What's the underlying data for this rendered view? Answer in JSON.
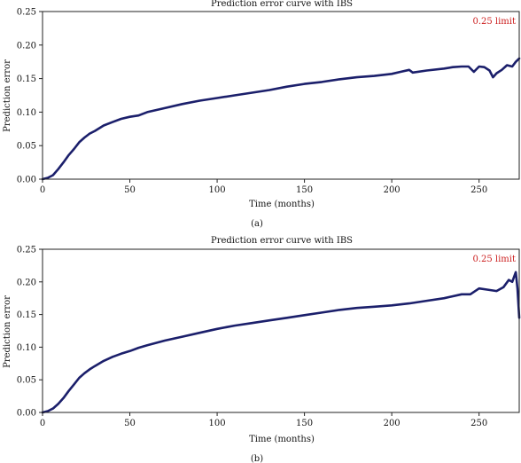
{
  "colors": {
    "series": "#1b1f6b",
    "limit": "#cc1f1f",
    "axis": "#222222"
  },
  "chart_data": [
    {
      "type": "line",
      "caption": "(a)",
      "title": "Prediction error curve with IBS",
      "xlabel": "Time (months)",
      "ylabel": "Prediction error",
      "xlim": [
        0,
        273
      ],
      "ylim": [
        0,
        0.25
      ],
      "xticks": [
        0,
        50,
        100,
        150,
        200,
        250
      ],
      "yticks": [
        "0.00",
        "0.05",
        "0.10",
        "0.15",
        "0.20",
        "0.25"
      ],
      "reference_line": {
        "y": 0.25,
        "label": "0.25 limit"
      },
      "series": [
        {
          "x": [
            0,
            3,
            6,
            9,
            12,
            15,
            18,
            21,
            24,
            27,
            30,
            35,
            40,
            45,
            50,
            55,
            60,
            70,
            80,
            90,
            100,
            110,
            120,
            130,
            140,
            150,
            160,
            170,
            180,
            190,
            200,
            205,
            210,
            212,
            220,
            230,
            235,
            240,
            244,
            247,
            250,
            253,
            256,
            258,
            260,
            263,
            266,
            269,
            271,
            273
          ],
          "y": [
            0.0,
            0.002,
            0.006,
            0.015,
            0.025,
            0.036,
            0.045,
            0.055,
            0.062,
            0.068,
            0.072,
            0.08,
            0.085,
            0.09,
            0.093,
            0.095,
            0.1,
            0.106,
            0.112,
            0.117,
            0.121,
            0.125,
            0.129,
            0.133,
            0.138,
            0.142,
            0.145,
            0.149,
            0.152,
            0.154,
            0.157,
            0.16,
            0.163,
            0.159,
            0.162,
            0.165,
            0.167,
            0.168,
            0.168,
            0.16,
            0.168,
            0.167,
            0.162,
            0.152,
            0.158,
            0.163,
            0.17,
            0.168,
            0.175,
            0.18
          ]
        }
      ]
    },
    {
      "type": "line",
      "caption": "(b)",
      "title": "Prediction error curve with IBS",
      "xlabel": "Time (months)",
      "ylabel": "Prediction error",
      "xlim": [
        0,
        273
      ],
      "ylim": [
        0,
        0.25
      ],
      "xticks": [
        0,
        50,
        100,
        150,
        200,
        250
      ],
      "yticks": [
        "0.00",
        "0.05",
        "0.10",
        "0.15",
        "0.20",
        "0.25"
      ],
      "reference_line": {
        "y": 0.25,
        "label": "0.25 limit"
      },
      "series": [
        {
          "x": [
            0,
            3,
            6,
            9,
            12,
            15,
            18,
            21,
            24,
            27,
            30,
            35,
            40,
            45,
            50,
            55,
            60,
            70,
            80,
            90,
            100,
            110,
            120,
            130,
            140,
            150,
            160,
            170,
            180,
            190,
            200,
            210,
            220,
            230,
            240,
            245,
            250,
            255,
            260,
            264,
            267,
            269,
            271,
            272,
            273
          ],
          "y": [
            0.0,
            0.002,
            0.006,
            0.013,
            0.022,
            0.033,
            0.043,
            0.053,
            0.06,
            0.066,
            0.071,
            0.079,
            0.085,
            0.09,
            0.094,
            0.099,
            0.103,
            0.11,
            0.116,
            0.122,
            0.128,
            0.133,
            0.137,
            0.141,
            0.145,
            0.149,
            0.153,
            0.157,
            0.16,
            0.162,
            0.164,
            0.167,
            0.171,
            0.175,
            0.181,
            0.181,
            0.19,
            0.188,
            0.186,
            0.192,
            0.203,
            0.2,
            0.215,
            0.19,
            0.145
          ]
        }
      ]
    }
  ]
}
